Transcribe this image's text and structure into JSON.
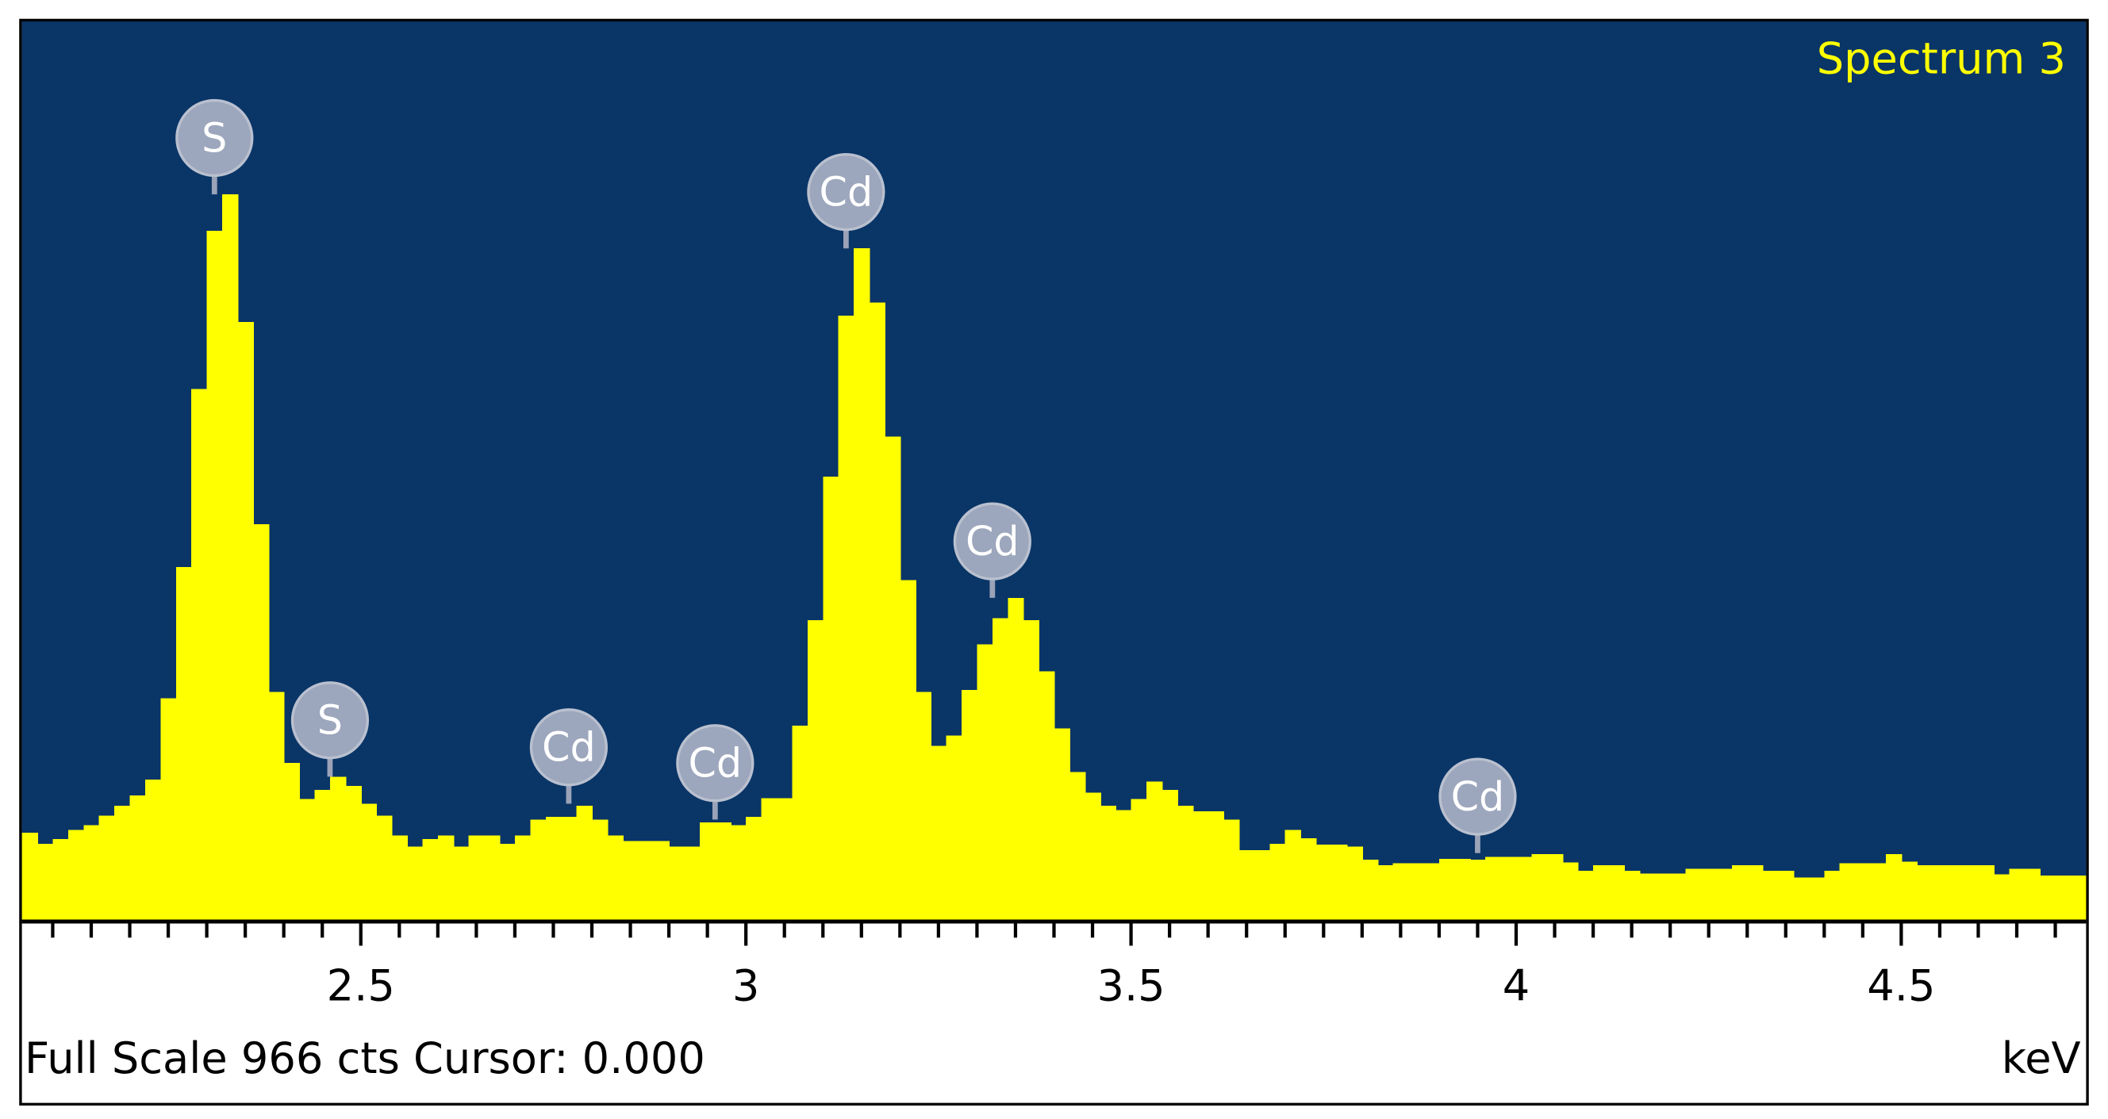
{
  "chart_data": {
    "type": "histogram",
    "title": "Spectrum 3",
    "footer": "Full Scale 966 cts Cursor: 0.000",
    "xlabel": "keV",
    "color": "#ffff00",
    "background": "#0a3567",
    "ylim": [
      0,
      966
    ],
    "xlim": [
      2.06,
      4.74
    ],
    "xticks": [
      2.5,
      3,
      3.5,
      4,
      4.5
    ],
    "xminorticks": [
      2.1,
      2.15,
      2.2,
      2.25,
      2.3,
      2.35,
      2.4,
      2.45,
      2.55,
      2.6,
      2.65,
      2.7,
      2.75,
      2.8,
      2.85,
      2.9,
      2.95,
      3.05,
      3.1,
      3.15,
      3.2,
      3.25,
      3.3,
      3.35,
      3.4,
      3.45,
      3.55,
      3.6,
      3.65,
      3.7,
      3.75,
      3.8,
      3.85,
      3.9,
      3.95,
      4.05,
      4.1,
      4.15,
      4.2,
      4.25,
      4.3,
      4.35,
      4.4,
      4.45,
      4.55,
      4.6,
      4.65,
      4.7
    ],
    "bins": [
      2.06,
      2.08,
      2.1,
      2.12,
      2.14,
      2.16,
      2.18,
      2.2,
      2.22,
      2.24,
      2.26,
      2.28,
      2.3,
      2.32,
      2.34,
      2.36,
      2.38,
      2.4,
      2.42,
      2.44,
      2.46,
      2.48,
      2.5,
      2.52,
      2.54,
      2.56,
      2.58,
      2.6,
      2.62,
      2.64,
      2.66,
      2.68,
      2.7,
      2.72,
      2.74,
      2.76,
      2.78,
      2.8,
      2.82,
      2.84,
      2.86,
      2.88,
      2.9,
      2.92,
      2.94,
      2.96,
      2.98,
      3,
      3.02,
      3.04,
      3.06,
      3.08,
      3.1,
      3.12,
      3.14,
      3.16,
      3.18,
      3.2,
      3.22,
      3.24,
      3.26,
      3.28,
      3.3,
      3.32,
      3.34,
      3.36,
      3.38,
      3.4,
      3.42,
      3.44,
      3.46,
      3.48,
      3.5,
      3.52,
      3.54,
      3.56,
      3.58,
      3.6,
      3.62,
      3.64,
      3.66,
      3.68,
      3.7,
      3.72,
      3.74,
      3.76,
      3.78,
      3.8,
      3.82,
      3.84,
      3.86,
      3.88,
      3.9,
      3.92,
      3.94,
      3.96,
      3.98,
      4,
      4.02,
      4.04,
      4.06,
      4.08,
      4.1,
      4.12,
      4.14,
      4.16,
      4.18,
      4.2,
      4.22,
      4.24,
      4.26,
      4.28,
      4.3,
      4.32,
      4.34,
      4.36,
      4.38,
      4.4,
      4.42,
      4.44,
      4.46,
      4.48,
      4.5,
      4.52,
      4.54,
      4.56,
      4.58,
      4.6,
      4.62,
      4.64,
      4.66,
      4.68,
      4.7,
      4.72,
      4.74
    ],
    "values": [
      94,
      82,
      87,
      97,
      102,
      112,
      123,
      134,
      151,
      238,
      379,
      570,
      740,
      779,
      642,
      425,
      245,
      169,
      130,
      140,
      154,
      144,
      125,
      112,
      91,
      79,
      87,
      91,
      79,
      91,
      91,
      82,
      91,
      108,
      111,
      111,
      123,
      108,
      91,
      85,
      85,
      85,
      79,
      79,
      105,
      105,
      102,
      111,
      131,
      131,
      209,
      322,
      476,
      649,
      721,
      663,
      519,
      365,
      245,
      187,
      198,
      247,
      296,
      324,
      346,
      322,
      267,
      206,
      159,
      137,
      123,
      118,
      130,
      149,
      140,
      123,
      117,
      117,
      108,
      75,
      75,
      82,
      97,
      88,
      81,
      81,
      79,
      65,
      59,
      61,
      61,
      61,
      66,
      66,
      65,
      68,
      68,
      68,
      71,
      71,
      62,
      53,
      59,
      59,
      53,
      50,
      50,
      50,
      55,
      55,
      55,
      59,
      59,
      53,
      53,
      46,
      46,
      53,
      61,
      61,
      61,
      71,
      63,
      59,
      59,
      59,
      59,
      59,
      49,
      55,
      55,
      48,
      48,
      48
    ],
    "annotations": [
      {
        "label": "S",
        "x": 2.31,
        "y": 779
      },
      {
        "label": "S",
        "x": 2.46,
        "y": 154
      },
      {
        "label": "Cd",
        "x": 2.77,
        "y": 125
      },
      {
        "label": "Cd",
        "x": 2.96,
        "y": 108
      },
      {
        "label": "Cd",
        "x": 3.13,
        "y": 721
      },
      {
        "label": "Cd",
        "x": 3.32,
        "y": 346
      },
      {
        "label": "Cd",
        "x": 3.95,
        "y": 72
      }
    ]
  }
}
